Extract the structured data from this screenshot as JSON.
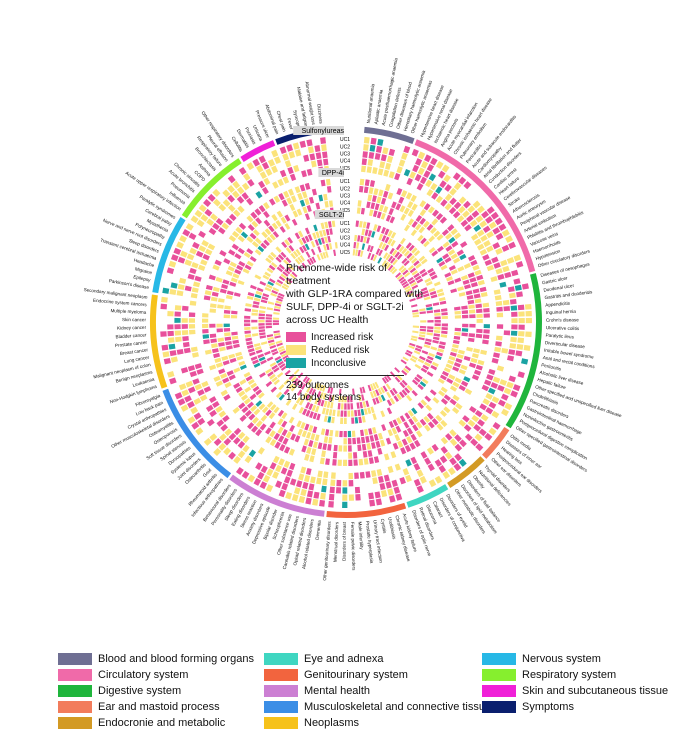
{
  "chart_data": {
    "type": "circular-heatmap",
    "title": "Phenome-wide risk of treatment with GLP-1RA compared with SULF, DPP-4i or SGLT-2i across UC Health",
    "categories_legend": [
      {
        "label": "Increased risk",
        "color": "#e8509b"
      },
      {
        "label": "Reduced risk",
        "color": "#fbe37a"
      },
      {
        "label": "Inconclusive",
        "color": "#1aa3a3"
      }
    ],
    "summary": [
      "239 outcomes",
      "14 body systems"
    ],
    "comparators": [
      {
        "label": "Sulfonylureas",
        "rings": [
          "UC1",
          "UC2",
          "UC3",
          "UC4",
          "UC5"
        ]
      },
      {
        "label": "DPP-4i",
        "rings": [
          "UC1",
          "UC2",
          "UC3",
          "UC4",
          "UC5"
        ]
      },
      {
        "label": "SGLT-2i",
        "rings": [
          "UC1",
          "UC2",
          "UC3",
          "UC4",
          "UC5"
        ]
      }
    ],
    "body_systems": [
      {
        "name": "Blood and blood forming organs",
        "color": "#6f6f93"
      },
      {
        "name": "Circulatory system",
        "color": "#f06aa9"
      },
      {
        "name": "Digestive system",
        "color": "#1fb53c"
      },
      {
        "name": "Ear and mastoid process",
        "color": "#f27c5c"
      },
      {
        "name": "Endocronie and metabolic",
        "color": "#d39a24"
      },
      {
        "name": "Eye and adnexa",
        "color": "#3fd6c1"
      },
      {
        "name": "Genitourinary system",
        "color": "#f2643e"
      },
      {
        "name": "Mental health",
        "color": "#cc7fd3"
      },
      {
        "name": "Musculoskeletal and connective tissue",
        "color": "#3b8ee6"
      },
      {
        "name": "Neoplasms",
        "color": "#f6c21b"
      },
      {
        "name": "Nervous system",
        "color": "#27b8e6"
      },
      {
        "name": "Respiratory system",
        "color": "#86ef2e"
      },
      {
        "name": "Skin and subcutaneous tissue",
        "color": "#f020d8"
      },
      {
        "name": "Symptoms",
        "color": "#0a1f6e"
      }
    ],
    "sectors": [
      {
        "system": "Blood and blood forming organs",
        "outcomes": [
          "Nutritional anaemia",
          "Aplastic anaemia",
          "Acute posthaemorrhagic anaemia",
          "Coagulation defects",
          "Other diseases of blood",
          "Hereditary haemolytic anaemia",
          "Other haemolytic anaemias"
        ]
      },
      {
        "system": "Circulatory system",
        "outcomes": [
          "Hypertensive heart disease",
          "Hypertensive renal disease",
          "Ischaemic heart disease",
          "Angina pectoris",
          "Acute myocardial infarction",
          "Chronic ischaemic heart disease",
          "Pulmonary embolism",
          "Pericarditis",
          "Acute and subacute endocarditis",
          "Cardiomyopathy",
          "Atrial fibrillation and flutter",
          "Conduction disorders",
          "Cardiac arrest",
          "Heart failure",
          "Cerebrovascular diseases",
          "Stroke",
          "Atherosclerosis",
          "Aortic aneurysm",
          "Peripheral vascular disease",
          "Arterial embolism",
          "Phlebitis and thrombophlebitis",
          "Varicose veins",
          "Haemorrhoids",
          "Hypotension",
          "Other circulatory disorders"
        ]
      },
      {
        "system": "Digestive system",
        "outcomes": [
          "Diseases of oesophagus",
          "Gastric ulcer",
          "Duodenal ulcer",
          "Gastritis and duodenitis",
          "Appendicitis",
          "Inguinal hernia",
          "Crohn's disease",
          "Ulcerative colitis",
          "Paralytic ileus",
          "Diverticular disease",
          "Irritable bowel syndrome",
          "Anal and rectal conditions",
          "Peritonitis",
          "Alcoholic liver disease",
          "Hepatic failure",
          "Other specified and unspecified liver disease",
          "Cholelithiasis",
          "Pancreatic disorders",
          "Gastrointestinal haemorrhage",
          "Noninfective gastroenteritis",
          "Postprocedural digestive complication",
          "Other specified gastrointestinal disorders"
        ]
      },
      {
        "system": "Ear and mastoid process",
        "outcomes": [
          "Otitis media",
          "Diseases of inner ear",
          "Hearing loss",
          "Postprocedural ear disorders",
          "Other ear disorders"
        ]
      },
      {
        "system": "Endocronie and metabolic",
        "outcomes": [
          "Thyroid disorders",
          "Nutritional deficiencies",
          "Obesity",
          "Disorders of fluid balance",
          "Disorders of lipid metabolism",
          "Other metabolic disorders"
        ]
      },
      {
        "system": "Eye and adnexa",
        "outcomes": [
          "Disorders of eyelid",
          "Disorders of conjunctiva",
          "Cataract",
          "Glaucoma",
          "Retinal disorders",
          "Disorders of optic nerve"
        ]
      },
      {
        "system": "Genitourinary system",
        "outcomes": [
          "Acute kidney failure",
          "Chronic kidney disease",
          "Urolithiasis",
          "Cystitis",
          "Urinary tract infection",
          "Prostatic hyperplasia",
          "Male infertility",
          "Female pelvic disorders",
          "Disorders of breast",
          "Menstrual disorders",
          "Other genitourinary disorders"
        ]
      },
      {
        "system": "Mental health",
        "outcomes": [
          "Dementia",
          "Alcohol related disorders",
          "Opioid related disorders",
          "Cannabis related disorders",
          "Other substance use",
          "Schizophrenia",
          "Bipolar disorder",
          "Depressive episode",
          "Anxiety disorders",
          "Stress reaction",
          "Eating disorders",
          "Sleep disorders",
          "Personality disorders",
          "Behavioural disorders"
        ]
      },
      {
        "system": "Musculoskeletal and connective tissue",
        "outcomes": [
          "Infectious arthropathies",
          "Rheumatoid arthritis",
          "Gout",
          "Osteoarthritis",
          "Joint disorders",
          "Systemic lupus",
          "Dorsopathies",
          "Spinal stenosis",
          "Soft tissue disorders",
          "Osteoporosis",
          "Osteomyelitis",
          "Other musculoskeletal disorders",
          "Crystal arthropathies",
          "Low back pain",
          "Fibromyalgia"
        ]
      },
      {
        "system": "Neoplasms",
        "outcomes": [
          "Non-Hodgkin lymphoma",
          "Leukaemia",
          "Benign neoplasms",
          "Malignant neoplasm of colon",
          "Lung cancer",
          "Breast cancer",
          "Prostate cancer",
          "Bladder cancer",
          "Kidney cancer",
          "Skin cancer",
          "Multiple myeloma",
          "Endocrine system cancers",
          "Secondary malignant neoplasm"
        ]
      },
      {
        "system": "Nervous system",
        "outcomes": [
          "Parkinson's disease",
          "Epilepsy",
          "Migraine",
          "Headache",
          "Transient cerebral ischaemia",
          "Sleep disorders",
          "Nerve and nerve root disorders",
          "Polyneuropathy",
          "Myasthenia",
          "Cerebral palsy",
          "Paralytic syndromes"
        ]
      },
      {
        "system": "Respiratory system",
        "outcomes": [
          "Acute upper respiratory infection",
          "Influenza",
          "Pneumonia",
          "Acute bronchitis",
          "Chronic sinusitis",
          "COPD",
          "Asthma",
          "Bronchiectasis",
          "Respiratory failure",
          "Pleural effusion",
          "Other respiratory disorders"
        ]
      },
      {
        "system": "Skin and subcutaneous tissue",
        "outcomes": [
          "Cellulitis",
          "Dermatitis",
          "Psoriasis",
          "Urticaria",
          "Pressure ulcer"
        ]
      },
      {
        "system": "Symptoms",
        "outcomes": [
          "Abdominal pain",
          "Chest pain",
          "Fever",
          "Syncope",
          "Malaise and fatigue",
          "Abnormal weight loss",
          "Dizziness"
        ]
      }
    ]
  },
  "center": {
    "title_lines": [
      "Phenome-wide risk of treatment",
      "with GLP-1RA compared with",
      "SULF, DPP-4i or SGLT-2i",
      "across UC Health"
    ],
    "legend": [
      {
        "label": "Increased risk",
        "color": "#e8509b"
      },
      {
        "label": "Reduced risk",
        "color": "#fbe37a"
      },
      {
        "label": "Inconclusive",
        "color": "#1aa3a3"
      }
    ],
    "stats": [
      "239 outcomes",
      "14 body systems"
    ]
  },
  "legend": [
    {
      "label": "Blood and blood forming organs",
      "color": "#6f6f93"
    },
    {
      "label": "Circulatory system",
      "color": "#f06aa9"
    },
    {
      "label": "Digestive system",
      "color": "#1fb53c"
    },
    {
      "label": "Ear and mastoid process",
      "color": "#f27c5c"
    },
    {
      "label": "Endocronie and metabolic",
      "color": "#d39a24"
    },
    {
      "label": "Eye and adnexa",
      "color": "#3fd6c1"
    },
    {
      "label": "Genitourinary system",
      "color": "#f2643e"
    },
    {
      "label": "Mental health",
      "color": "#cc7fd3"
    },
    {
      "label": "Musculoskeletal and connective tissue",
      "color": "#3b8ee6"
    },
    {
      "label": "Neoplasms",
      "color": "#f6c21b"
    },
    {
      "label": "Nervous system",
      "color": "#27b8e6"
    },
    {
      "label": "Respiratory system",
      "color": "#86ef2e"
    },
    {
      "label": "Skin and subcutaneous tissue",
      "color": "#f020d8"
    },
    {
      "label": "Symptoms",
      "color": "#0a1f6e"
    }
  ]
}
